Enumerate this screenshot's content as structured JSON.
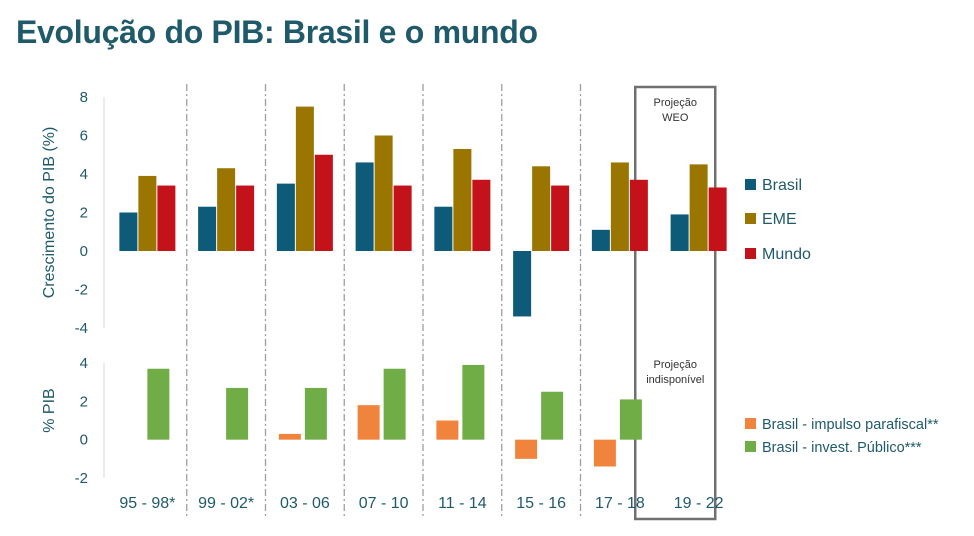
{
  "page": {
    "title": "Evolução do PIB: Brasil e o mundo"
  },
  "colors": {
    "brasil": "#0d5b78",
    "eme": "#9a7600",
    "mundo": "#c4121b",
    "impulso": "#f0843c",
    "invest": "#70ad47",
    "text": "#1f5a6b",
    "box": "#707070"
  },
  "chart_data": [
    {
      "type": "bar",
      "ylabel": "Crescimento do PIB (%)",
      "ylim": [
        -4,
        8
      ],
      "yticks": [
        "8",
        "6",
        "4",
        "2",
        "0",
        "-2",
        "-4"
      ],
      "categories": [
        "95 - 98*",
        "99 - 02*",
        "03 - 06",
        "07 - 10",
        "11 - 14",
        "15 - 16",
        "17 - 18",
        "19 - 22"
      ],
      "series": [
        {
          "name": "Brasil",
          "values": [
            2.0,
            2.3,
            3.5,
            4.6,
            2.3,
            -3.4,
            1.1,
            1.9
          ]
        },
        {
          "name": "EME",
          "values": [
            3.9,
            4.3,
            7.5,
            6.0,
            5.3,
            4.4,
            4.6,
            4.5
          ]
        },
        {
          "name": "Mundo",
          "values": [
            3.4,
            3.4,
            5.0,
            3.4,
            3.7,
            3.4,
            3.7,
            3.3
          ]
        }
      ],
      "annotation": "Projeção WEO",
      "annotation_lines": [
        "Projeção",
        "WEO"
      ]
    },
    {
      "type": "bar",
      "ylabel": "% PIB",
      "ylim": [
        -2,
        4
      ],
      "yticks": [
        "4",
        "2",
        "0",
        "-2"
      ],
      "categories": [
        "95 - 98*",
        "99 - 02*",
        "03 - 06",
        "07 - 10",
        "11 - 14",
        "15 - 16",
        "17 - 18",
        "19 - 22"
      ],
      "series": [
        {
          "name": "Brasil - impulso parafiscal**",
          "values": [
            null,
            null,
            0.3,
            1.8,
            1.0,
            -1.0,
            -1.4,
            null
          ]
        },
        {
          "name": "Brasil - invest. Público***",
          "values": [
            3.7,
            2.7,
            2.7,
            3.7,
            3.9,
            2.5,
            2.1,
            null
          ]
        }
      ],
      "annotation": "Projeção indisponível",
      "annotation_lines": [
        "Projeção",
        "indisponível"
      ]
    }
  ]
}
